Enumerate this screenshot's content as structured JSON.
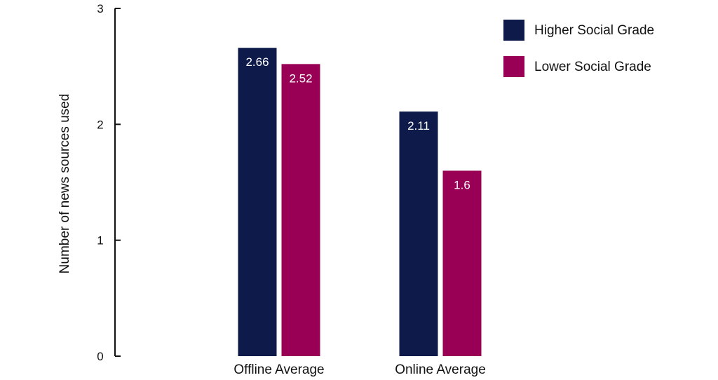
{
  "chart_data": {
    "type": "bar",
    "categories": [
      "Offline Average",
      "Online Average"
    ],
    "series": [
      {
        "name": "Higher Social Grade",
        "values": [
          2.66,
          2.11
        ],
        "color": "#0d1a4a"
      },
      {
        "name": "Lower Social Grade",
        "values": [
          2.52,
          1.6
        ],
        "color": "#990055"
      }
    ],
    "ylabel": "Number of news sources used",
    "ylim": [
      0,
      3
    ],
    "yticks": [
      0,
      1,
      2,
      3
    ],
    "grid": false,
    "legend_position": "top-right",
    "axis_color": "#111111"
  }
}
